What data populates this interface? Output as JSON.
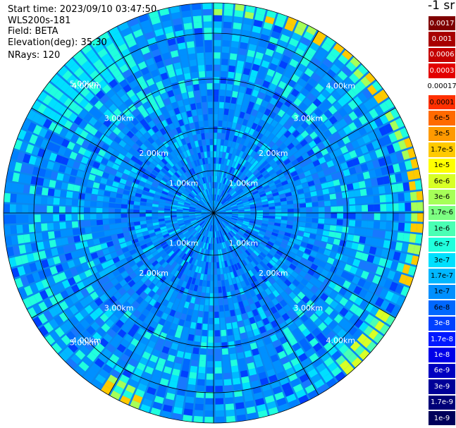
{
  "header": {
    "start_time": "Start time: 2023/09/10 03:47:50",
    "instrument": "WLS200s-181",
    "field": "Field: BETA",
    "elevation": "Elevation(deg): 35.30",
    "nrays": "NRays: 120"
  },
  "legend": {
    "unit": "-1 sr",
    "levels": [
      {
        "label": "0.0017",
        "color": "#7f0000"
      },
      {
        "label": "0.001",
        "color": "#a80000"
      },
      {
        "label": "0.0006",
        "color": "#c40000"
      },
      {
        "label": "0.0003",
        "color": "#e30000"
      },
      {
        "label": "0.00017",
        "color": "#ffffff"
      },
      {
        "label": "0.0001",
        "color": "#ff3000"
      },
      {
        "label": "6e-5",
        "color": "#ff6a00"
      },
      {
        "label": "3e-5",
        "color": "#ff9a00"
      },
      {
        "label": "1.7e-5",
        "color": "#ffca00"
      },
      {
        "label": "1e-5",
        "color": "#ffff00"
      },
      {
        "label": "6e-6",
        "color": "#d8ff26"
      },
      {
        "label": "3e-6",
        "color": "#a6ff58"
      },
      {
        "label": "1.7e-6",
        "color": "#7cff82"
      },
      {
        "label": "1e-6",
        "color": "#4affb4"
      },
      {
        "label": "6e-7",
        "color": "#20ffdd"
      },
      {
        "label": "3e-7",
        "color": "#00e0ff"
      },
      {
        "label": "1.7e-7",
        "color": "#00b8ff"
      },
      {
        "label": "1e-7",
        "color": "#0090ff"
      },
      {
        "label": "6e-8",
        "color": "#0068ff"
      },
      {
        "label": "3e-8",
        "color": "#0040ff"
      },
      {
        "label": "1.7e-8",
        "color": "#0018ff"
      },
      {
        "label": "1e-8",
        "color": "#0000e8"
      },
      {
        "label": "6e-9",
        "color": "#0000c0"
      },
      {
        "label": "3e-9",
        "color": "#000098"
      },
      {
        "label": "1.7e-9",
        "color": "#000078"
      },
      {
        "label": "1e-9",
        "color": "#00005a"
      }
    ]
  },
  "range_labels": [
    "1.00km",
    "2.00km",
    "3.00km",
    "4.00km",
    "5.00km"
  ],
  "chart_data": {
    "type": "heatmap",
    "projection": "polar PPI",
    "field": "BETA",
    "rays": 120,
    "range_rings_km": [
      1,
      2,
      3,
      4,
      5
    ],
    "max_range_km": 5,
    "dominant_value_range": [
      "6e-8",
      "3e-7"
    ],
    "high_value_regions": [
      {
        "azimuth_deg": [
          0,
          110
        ],
        "range_km": [
          4.7,
          5.0
        ],
        "value_range": [
          "1e-6",
          "3e-5"
        ]
      },
      {
        "azimuth_deg": [
          120,
          140
        ],
        "range_km": [
          4.5,
          5.0
        ],
        "value_range": [
          "1e-6",
          "1e-5"
        ]
      },
      {
        "azimuth_deg": [
          200,
          210
        ],
        "range_km": [
          4.6,
          5.0
        ],
        "value_range": [
          "1e-6",
          "3e-5"
        ]
      },
      {
        "azimuth_deg": [
          300,
          330
        ],
        "range_km": [
          4.0,
          5.0
        ],
        "value_range": [
          "3e-7",
          "1e-6"
        ]
      }
    ]
  }
}
